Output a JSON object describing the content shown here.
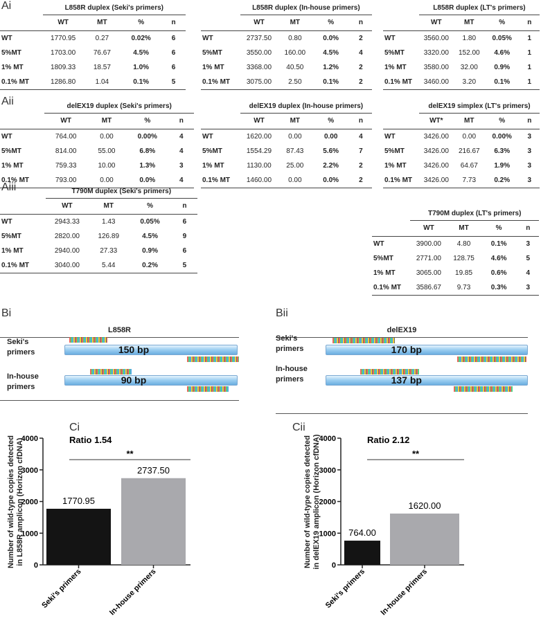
{
  "sections": [
    {
      "label": "Ai",
      "tables": [
        {
          "title": "L858R duplex (Seki's primers)",
          "columns": [
            "WT",
            "MT",
            "%",
            "n"
          ],
          "rows": [
            [
              "WT",
              "1770.95",
              "0.27",
              "0.02%",
              "6"
            ],
            [
              "5%MT",
              "1703.00",
              "76.67",
              "4.5%",
              "6"
            ],
            [
              "1% MT",
              "1809.33",
              "18.57",
              "1.0%",
              "6"
            ],
            [
              "0.1% MT",
              "1286.80",
              "1.04",
              "0.1%",
              "5"
            ]
          ]
        },
        {
          "title": "L858R duplex (In-house primers)",
          "columns": [
            "WT",
            "MT",
            "%",
            "n"
          ],
          "rows": [
            [
              "WT",
              "2737.50",
              "0.80",
              "0.0%",
              "2"
            ],
            [
              "5%MT",
              "3550.00",
              "160.00",
              "4.5%",
              "4"
            ],
            [
              "1% MT",
              "3368.00",
              "40.50",
              "1.2%",
              "2"
            ],
            [
              "0.1% MT",
              "3075.00",
              "2.50",
              "0.1%",
              "2"
            ]
          ]
        },
        {
          "title": "L858R duplex (LT's primers)",
          "columns": [
            "WT",
            "MT",
            "%",
            "n"
          ],
          "rows": [
            [
              "WT",
              "3560.00",
              "1.80",
              "0.05%",
              "1"
            ],
            [
              "5%MT",
              "3320.00",
              "152.00",
              "4.6%",
              "1"
            ],
            [
              "1% MT",
              "3580.00",
              "32.00",
              "0.9%",
              "1"
            ],
            [
              "0.1% MT",
              "3460.00",
              "3.20",
              "0.1%",
              "1"
            ]
          ]
        }
      ]
    },
    {
      "label": "Aii",
      "tables": [
        {
          "title": "delEX19 duplex (Seki's primers)",
          "columns": [
            "WT",
            "MT",
            "%",
            "n"
          ],
          "rows": [
            [
              "WT",
              "764.00",
              "0.00",
              "0.00%",
              "4"
            ],
            [
              "5%MT",
              "814.00",
              "55.00",
              "6.8%",
              "4"
            ],
            [
              "1% MT",
              "759.33",
              "10.00",
              "1.3%",
              "3"
            ],
            [
              "0.1% MT",
              "793.00",
              "0.00",
              "0.0%",
              "4"
            ]
          ]
        },
        {
          "title": "delEX19 duplex (In-house primers)",
          "columns": [
            "WT",
            "MT",
            "%",
            "n"
          ],
          "rows": [
            [
              "WT",
              "1620.00",
              "0.00",
              "0.00",
              "4"
            ],
            [
              "5%MT",
              "1554.29",
              "87.43",
              "5.6%",
              "7"
            ],
            [
              "1% MT",
              "1130.00",
              "25.00",
              "2.2%",
              "2"
            ],
            [
              "0.1% MT",
              "1460.00",
              "0.00",
              "0.0%",
              "2"
            ]
          ]
        },
        {
          "title": "delEX19 simplex (LT's primers)",
          "columns": [
            "WT*",
            "MT",
            "%",
            "n"
          ],
          "rows": [
            [
              "WT",
              "3426.00",
              "0.00",
              "0.00%",
              "3"
            ],
            [
              "5%MT",
              "3426.00",
              "216.67",
              "6.3%",
              "3"
            ],
            [
              "1% MT",
              "3426.00",
              "64.67",
              "1.9%",
              "3"
            ],
            [
              "0.1% MT",
              "3426.00",
              "7.73",
              "0.2%",
              "3"
            ]
          ]
        }
      ]
    },
    {
      "label": "Aiii",
      "tables": [
        {
          "title": "T790M duplex (Seki's primers)",
          "columns": [
            "WT",
            "MT",
            "%",
            "n"
          ],
          "rows": [
            [
              "WT",
              "2943.33",
              "1.43",
              "0.05%",
              "6"
            ],
            [
              "5%MT",
              "2820.00",
              "126.89",
              "4.5%",
              "9"
            ],
            [
              "1% MT",
              "2940.00",
              "27.33",
              "0.9%",
              "6"
            ],
            [
              "0.1% MT",
              "3040.00",
              "5.44",
              "0.2%",
              "5"
            ]
          ]
        },
        {
          "title": "T790M duplex (LT's primers)",
          "columns": [
            "WT",
            "MT",
            "%",
            "n"
          ],
          "rows": [
            [
              "WT",
              "3900.00",
              "4.80",
              "0.1%",
              "3"
            ],
            [
              "5%MT",
              "2771.00",
              "128.75",
              "4.6%",
              "5"
            ],
            [
              "1% MT",
              "3065.00",
              "19.85",
              "0.6%",
              "4"
            ],
            [
              "0.1% MT",
              "3586.67",
              "9.73",
              "0.3%",
              "3"
            ]
          ]
        }
      ]
    }
  ],
  "diagrams": [
    {
      "label": "Bi",
      "title": "L858R",
      "rows": [
        {
          "name": "Seki's primers",
          "size": "150 bp"
        },
        {
          "name": "In-house primers",
          "size": "90 bp"
        }
      ]
    },
    {
      "label": "Bii",
      "title": "delEX19",
      "rows": [
        {
          "name": "Seki's primers",
          "size": "170 bp"
        },
        {
          "name": "In-house primers",
          "size": "137 bp"
        }
      ]
    }
  ],
  "chart_data": [
    {
      "type": "bar",
      "panel_label": "Ci",
      "ylabel": "Number of wild-type copies detected in L858R amplicon (Horizon cfDNA)",
      "categories": [
        "Seki's primers",
        "In-house primers"
      ],
      "values": [
        1770.95,
        2737.5
      ],
      "value_labels": [
        "1770.95",
        "2737.50"
      ],
      "colors": [
        "#141414",
        "#a9a9ad"
      ],
      "ylim": [
        0,
        4000
      ],
      "yticks": [
        0,
        1000,
        2000,
        3000,
        4000
      ],
      "ratio_label": "Ratio 1.54",
      "significance": "**"
    },
    {
      "type": "bar",
      "panel_label": "Cii",
      "ylabel": "Number of wild-type copies detected in delEX19 amplicon (Horizon cfDNA)",
      "categories": [
        "Seki's primers",
        "In-house primers"
      ],
      "values": [
        764,
        1620
      ],
      "value_labels": [
        "764.00",
        "1620.00"
      ],
      "colors": [
        "#141414",
        "#a9a9ad"
      ],
      "ylim": [
        0,
        4000
      ],
      "yticks": [
        0,
        1000,
        2000,
        3000,
        4000
      ],
      "ratio_label": "Ratio 2.12",
      "significance": "**"
    }
  ]
}
